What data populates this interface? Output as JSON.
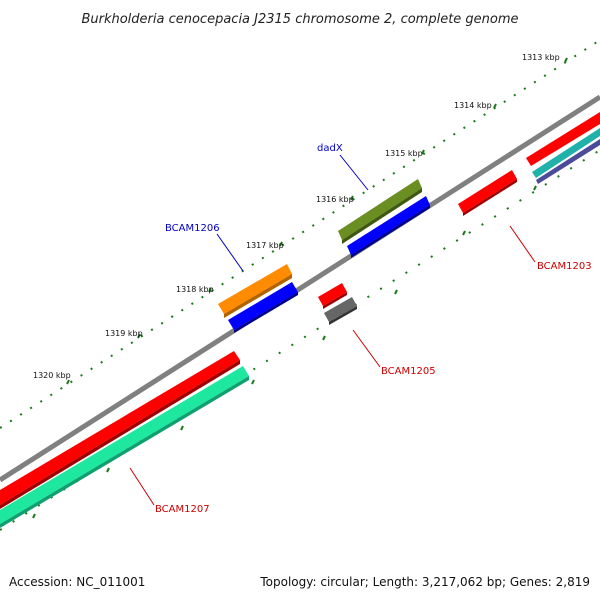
{
  "title": "Burkholderia cenocepacia J2315 chromosome 2, complete genome",
  "footer": {
    "accession": "Accession: NC_011001",
    "info": "Topology: circular; Length: 3,217,062 bp; Genes: 2,819"
  },
  "ruler": [
    {
      "label": "1313 kbp"
    },
    {
      "label": "1314 kbp"
    },
    {
      "label": "1315 kbp"
    },
    {
      "label": "1316 kbp"
    },
    {
      "label": "1317 kbp"
    },
    {
      "label": "1318 kbp"
    },
    {
      "label": "1319 kbp"
    },
    {
      "label": "1320 kbp"
    }
  ],
  "gene_labels": [
    {
      "name": "dadX",
      "color": "#0000cc"
    },
    {
      "name": "BCAM1206",
      "color": "#0000cc"
    },
    {
      "name": "BCAM1203",
      "color": "#cc0000"
    },
    {
      "name": "BCAM1205",
      "color": "#cc0000"
    },
    {
      "name": "BCAM1207",
      "color": "#cc0000"
    }
  ],
  "colors": {
    "backbone": "#808080",
    "tick": "#1a7a1a",
    "red": "#ff0000",
    "green": "#6b8e23",
    "blue": "#0000ff",
    "orange": "#ff8c00",
    "gray": "#666666",
    "aqua": "#1ee8a0",
    "teal": "#20b2aa",
    "navy": "#4b4b9a"
  }
}
